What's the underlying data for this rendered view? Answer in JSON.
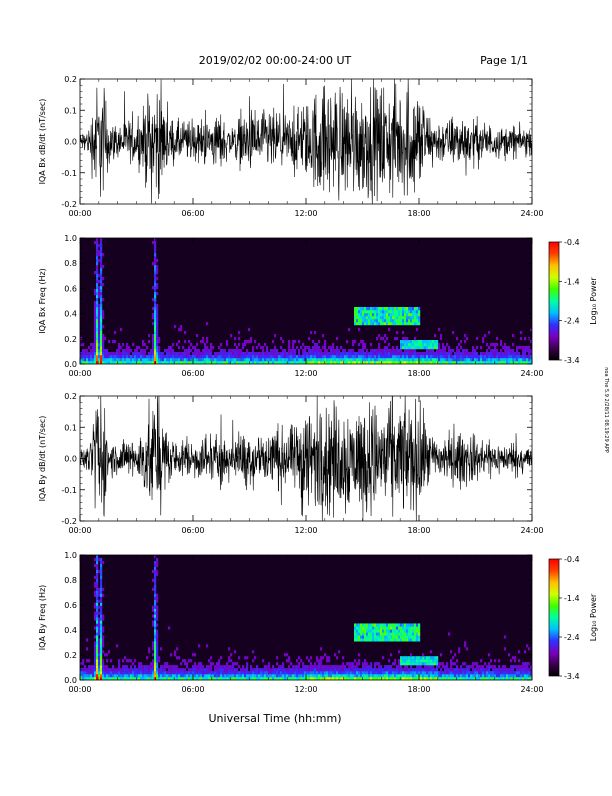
{
  "header": {
    "title": "2019/02/02  00:00-24:00 UT",
    "page": "Page 1/1"
  },
  "side_stamp": "noa The 5.9 2/28/11 08.19:29 APP",
  "x_axis": {
    "label": "Universal Time (hh:mm)",
    "ticks": [
      "00:00",
      "06:00",
      "12:00",
      "18:00",
      "24:00"
    ],
    "range_hours": [
      0,
      24
    ]
  },
  "colors": {
    "waveform": "#000000",
    "spectrogram_background": "#15001f",
    "colormap": [
      "#000000",
      "#3c0050",
      "#7a00c0",
      "#3030ff",
      "#00c0ff",
      "#00ffa0",
      "#40ff00",
      "#d0ff00",
      "#ffc000",
      "#ff4000",
      "#ff0000"
    ]
  },
  "chart_data": [
    {
      "type": "line",
      "ylabel": "IQA Bx dB/dt (nT/sec)",
      "ylim": [
        -0.2,
        0.2
      ],
      "yticks": [
        "-0.2",
        "-0.1",
        "0.0",
        "0.1",
        "0.2"
      ],
      "x_hours": [
        0,
        0.5,
        0.8,
        1.0,
        1.3,
        1.6,
        2.0,
        2.5,
        3.0,
        3.4,
        3.7,
        3.9,
        4.2,
        4.6,
        5.0,
        5.5,
        6.0,
        6.5,
        7.0,
        7.5,
        8.0,
        8.5,
        9.0,
        9.5,
        10.0,
        10.5,
        11.0,
        11.5,
        11.8,
        12.2,
        12.6,
        13.0,
        13.5,
        14.0,
        14.5,
        15.0,
        15.5,
        16.0,
        16.5,
        17.0,
        17.5,
        18.0,
        18.5,
        19.0,
        19.5,
        20.0,
        20.5,
        21.0,
        21.5,
        22.0,
        22.5,
        23.0,
        23.5,
        24.0
      ],
      "amplitude_nt_per_s": [
        0.03,
        0.05,
        0.2,
        0.2,
        0.2,
        0.07,
        0.06,
        0.08,
        0.07,
        0.12,
        0.2,
        0.2,
        0.2,
        0.1,
        0.07,
        0.08,
        0.07,
        0.08,
        0.09,
        0.1,
        0.05,
        0.09,
        0.11,
        0.1,
        0.12,
        0.1,
        0.09,
        0.12,
        0.13,
        0.14,
        0.2,
        0.2,
        0.2,
        0.2,
        0.2,
        0.2,
        0.2,
        0.2,
        0.2,
        0.2,
        0.2,
        0.2,
        0.1,
        0.08,
        0.08,
        0.09,
        0.1,
        0.08,
        0.07,
        0.06,
        0.05,
        0.06,
        0.05,
        0.05
      ]
    },
    {
      "type": "heatmap",
      "ylabel": "IQA Bx Freq (Hz)",
      "ylim": [
        0,
        1
      ],
      "yticks": [
        "0.0",
        "0.2",
        "0.4",
        "0.6",
        "0.8",
        "1.0"
      ],
      "colorbar": {
        "label": "Log₁₀ Power",
        "ticks": [
          "-0.4",
          "-1.4",
          "-2.4",
          "-3.4"
        ],
        "range": [
          -3.4,
          -0.4
        ]
      },
      "bursts_hours": [
        0.9,
        1.1,
        4.0
      ],
      "mid_band": {
        "hours": [
          14.5,
          18.0
        ],
        "freq_hz": [
          0.3,
          0.45
        ]
      },
      "low_band": {
        "hours": [
          17.0,
          19.0
        ],
        "freq_hz": [
          0.12,
          0.18
        ]
      }
    },
    {
      "type": "line",
      "ylabel": "IQA By dB/dt (nT/sec)",
      "ylim": [
        -0.2,
        0.2
      ],
      "yticks": [
        "-0.2",
        "-0.1",
        "0.0",
        "0.1",
        "0.2"
      ],
      "x_hours": [
        0,
        0.5,
        0.8,
        1.0,
        1.3,
        1.6,
        2.0,
        2.5,
        3.0,
        3.4,
        3.7,
        3.9,
        4.2,
        4.6,
        5.0,
        5.5,
        6.0,
        6.5,
        7.0,
        7.5,
        8.0,
        8.5,
        9.0,
        9.5,
        10.0,
        10.5,
        11.0,
        11.5,
        11.8,
        12.2,
        12.6,
        13.0,
        13.5,
        14.0,
        14.5,
        15.0,
        15.5,
        16.0,
        16.5,
        17.0,
        17.5,
        18.0,
        18.5,
        19.0,
        19.5,
        20.0,
        20.5,
        21.0,
        21.5,
        22.0,
        22.5,
        23.0,
        23.5,
        24.0
      ],
      "amplitude_nt_per_s": [
        0.03,
        0.04,
        0.2,
        0.2,
        0.2,
        0.06,
        0.06,
        0.07,
        0.07,
        0.12,
        0.2,
        0.2,
        0.2,
        0.1,
        0.06,
        0.07,
        0.07,
        0.08,
        0.09,
        0.1,
        0.06,
        0.09,
        0.11,
        0.1,
        0.12,
        0.11,
        0.1,
        0.13,
        0.2,
        0.2,
        0.2,
        0.2,
        0.2,
        0.2,
        0.2,
        0.2,
        0.2,
        0.2,
        0.2,
        0.2,
        0.2,
        0.2,
        0.1,
        0.08,
        0.09,
        0.09,
        0.1,
        0.08,
        0.07,
        0.06,
        0.05,
        0.06,
        0.05,
        0.05
      ]
    },
    {
      "type": "heatmap",
      "ylabel": "IQA By Freq (Hz)",
      "ylim": [
        0,
        1
      ],
      "yticks": [
        "0.0",
        "0.2",
        "0.4",
        "0.6",
        "0.8",
        "1.0"
      ],
      "colorbar": {
        "label": "Log₁₀ Power",
        "ticks": [
          "-0.4",
          "-1.4",
          "-2.4",
          "-3.4"
        ],
        "range": [
          -3.4,
          -0.4
        ]
      },
      "bursts_hours": [
        0.9,
        1.1,
        4.0
      ],
      "mid_band": {
        "hours": [
          14.5,
          18.0
        ],
        "freq_hz": [
          0.3,
          0.45
        ]
      },
      "low_band": {
        "hours": [
          17.0,
          19.0
        ],
        "freq_hz": [
          0.12,
          0.18
        ]
      }
    }
  ]
}
